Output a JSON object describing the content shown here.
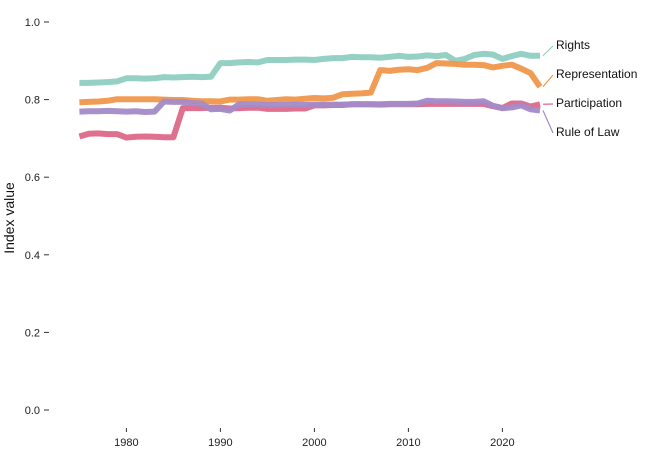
{
  "chart_data": {
    "type": "line",
    "title": "",
    "xlabel": "",
    "ylabel": "Index value",
    "xlim": [
      1974,
      2024
    ],
    "ylim": [
      0,
      1
    ],
    "x_ticks": [
      1980,
      1990,
      2000,
      2010,
      2020
    ],
    "y_ticks": [
      0.0,
      0.2,
      0.4,
      0.6,
      0.8,
      1.0
    ],
    "y_tick_labels": [
      "0.0",
      "0.2",
      "0.4",
      "0.6",
      "0.8",
      "1.0"
    ],
    "grid": false,
    "legend": "direct labels at line ends (right)",
    "x": [
      1975,
      1976,
      1977,
      1978,
      1979,
      1980,
      1981,
      1982,
      1983,
      1984,
      1985,
      1986,
      1987,
      1988,
      1989,
      1990,
      1991,
      1992,
      1993,
      1994,
      1995,
      1996,
      1997,
      1998,
      1999,
      2000,
      2001,
      2002,
      2003,
      2004,
      2005,
      2006,
      2007,
      2008,
      2009,
      2010,
      2011,
      2012,
      2013,
      2014,
      2015,
      2016,
      2017,
      2018,
      2019,
      2020,
      2021,
      2022,
      2023,
      2024
    ],
    "series": [
      {
        "name": "Rights",
        "color": "#8ecfc1",
        "values": [
          0.843,
          0.843,
          0.844,
          0.845,
          0.847,
          0.855,
          0.855,
          0.854,
          0.855,
          0.858,
          0.857,
          0.858,
          0.859,
          0.858,
          0.859,
          0.894,
          0.894,
          0.896,
          0.897,
          0.896,
          0.902,
          0.902,
          0.902,
          0.903,
          0.903,
          0.902,
          0.905,
          0.907,
          0.907,
          0.91,
          0.909,
          0.909,
          0.908,
          0.91,
          0.913,
          0.91,
          0.911,
          0.914,
          0.912,
          0.915,
          0.9,
          0.905,
          0.915,
          0.918,
          0.916,
          0.905,
          0.912,
          0.918,
          0.913,
          0.913
        ]
      },
      {
        "name": "Representation",
        "color": "#f0974b",
        "values": [
          0.793,
          0.794,
          0.795,
          0.797,
          0.801,
          0.801,
          0.801,
          0.801,
          0.801,
          0.8,
          0.799,
          0.799,
          0.797,
          0.796,
          0.796,
          0.795,
          0.8,
          0.8,
          0.801,
          0.801,
          0.797,
          0.799,
          0.801,
          0.8,
          0.802,
          0.804,
          0.803,
          0.805,
          0.814,
          0.815,
          0.816,
          0.818,
          0.876,
          0.874,
          0.877,
          0.878,
          0.876,
          0.882,
          0.894,
          0.893,
          0.892,
          0.89,
          0.89,
          0.889,
          0.883,
          0.887,
          0.89,
          0.88,
          0.868,
          0.833
        ]
      },
      {
        "name": "Participation",
        "color": "#dd6989",
        "values": [
          0.705,
          0.712,
          0.713,
          0.711,
          0.711,
          0.702,
          0.704,
          0.705,
          0.704,
          0.703,
          0.703,
          0.778,
          0.778,
          0.778,
          0.779,
          0.779,
          0.777,
          0.778,
          0.779,
          0.779,
          0.776,
          0.776,
          0.776,
          0.777,
          0.777,
          0.785,
          0.785,
          0.786,
          0.786,
          0.788,
          0.788,
          0.788,
          0.787,
          0.788,
          0.788,
          0.788,
          0.788,
          0.789,
          0.789,
          0.789,
          0.789,
          0.789,
          0.789,
          0.789,
          0.783,
          0.778,
          0.79,
          0.79,
          0.782,
          0.788
        ]
      },
      {
        "name": "Rule of Law",
        "color": "#a38bc8",
        "values": [
          0.769,
          0.77,
          0.77,
          0.771,
          0.77,
          0.769,
          0.77,
          0.768,
          0.769,
          0.795,
          0.794,
          0.794,
          0.791,
          0.79,
          0.775,
          0.776,
          0.772,
          0.788,
          0.788,
          0.787,
          0.786,
          0.786,
          0.786,
          0.787,
          0.786,
          0.787,
          0.787,
          0.787,
          0.787,
          0.788,
          0.788,
          0.788,
          0.788,
          0.789,
          0.789,
          0.789,
          0.79,
          0.797,
          0.796,
          0.796,
          0.795,
          0.794,
          0.794,
          0.796,
          0.784,
          0.778,
          0.78,
          0.785,
          0.775,
          0.772
        ]
      }
    ]
  }
}
